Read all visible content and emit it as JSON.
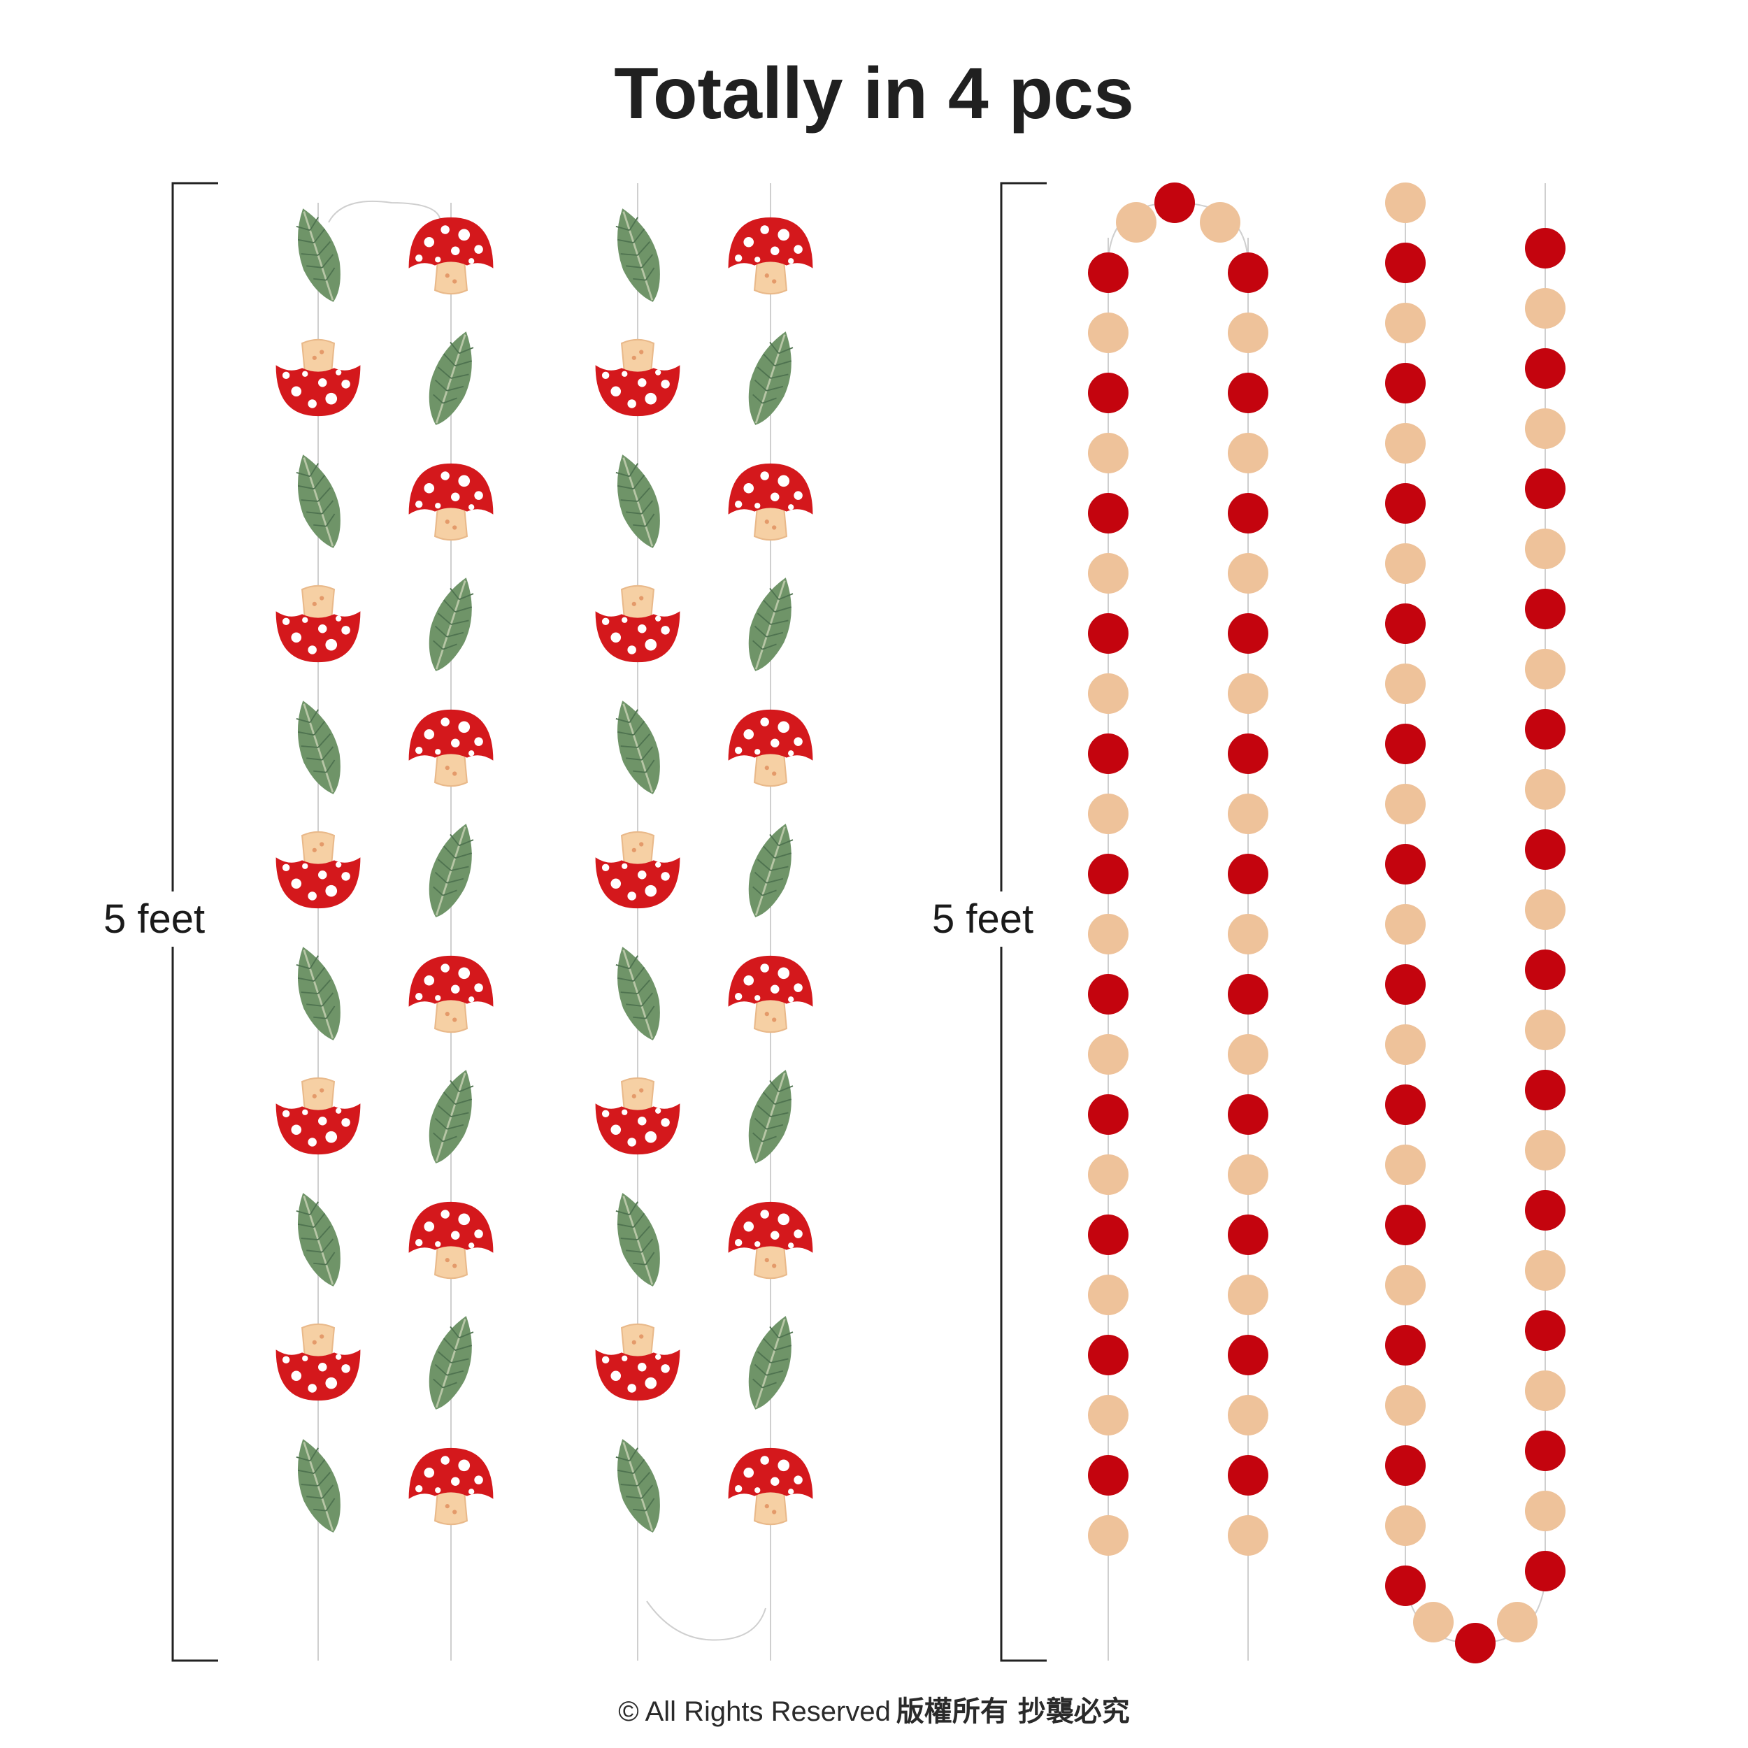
{
  "title": "Totally in 4 pcs",
  "measure_left": "5 feet",
  "measure_right": "5 feet",
  "copyright": "© All Rights Reserved",
  "copyright_cjk": "版權所有 抄襲必究",
  "colors": {
    "mushroom_cap": "#d4181c",
    "mushroom_spots": "#ffffff",
    "mushroom_stem": "#f6d0a4",
    "leaf": "#6f9468",
    "dot_red": "#c4040e",
    "dot_tan": "#eec29a",
    "string": "#c8c8c8"
  },
  "icons": [
    "mushroom-icon",
    "leaf-icon",
    "circle-dot-icon"
  ]
}
